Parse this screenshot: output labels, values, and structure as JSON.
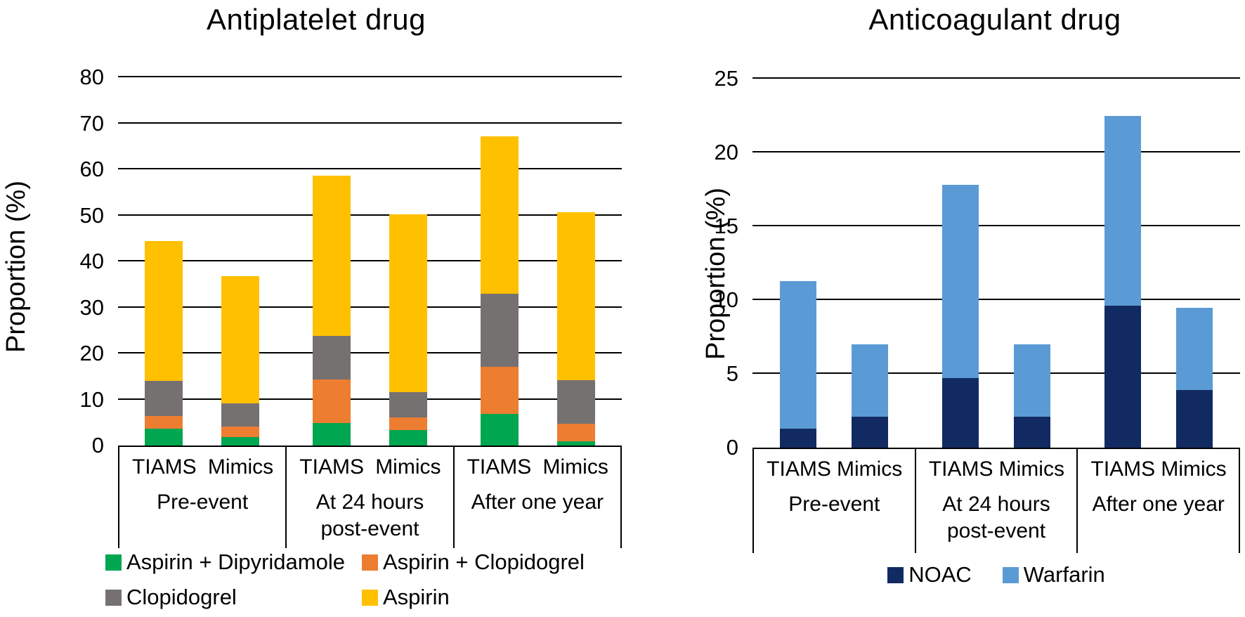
{
  "page": {
    "background": "#FFFFFF"
  },
  "chart_data": [
    {
      "type": "stacked-bar",
      "title": "Antiplatelet drug",
      "ylabel": "Proportion (%)",
      "ylim": [
        0,
        80
      ],
      "yticks": [
        0,
        10,
        20,
        30,
        40,
        50,
        60,
        70,
        80
      ],
      "grid": true,
      "gridline_color": "#000000",
      "legend_position": "bottom",
      "legend_columns": 2,
      "groups": [
        {
          "label": "Pre-event",
          "bars": [
            "TIAMS",
            "Mimics"
          ]
        },
        {
          "label": "At 24 hours\npost-event",
          "bars": [
            "TIAMS",
            "Mimics"
          ]
        },
        {
          "label": "After one year",
          "bars": [
            "TIAMS",
            "Mimics"
          ]
        }
      ],
      "categories": [
        "TIAMS",
        "Mimics",
        "TIAMS",
        "Mimics",
        "TIAMS",
        "Mimics"
      ],
      "series": [
        {
          "name": "Aspirin + Dipyridamole",
          "color": "#00A650",
          "values": [
            3.7,
            1.8,
            4.9,
            3.4,
            6.9,
            0.9
          ]
        },
        {
          "name": "Aspirin + Clopidogrel",
          "color": "#ED7D31",
          "values": [
            2.7,
            2.3,
            9.5,
            2.7,
            10.2,
            3.8
          ]
        },
        {
          "name": "Clopidogrel",
          "color": "#767171",
          "values": [
            7.7,
            5.1,
            9.4,
            5.5,
            15.9,
            9.5
          ]
        },
        {
          "name": "Aspirin",
          "color": "#FFC000",
          "values": [
            30.3,
            27.6,
            34.8,
            38.6,
            34.2,
            36.5
          ]
        }
      ],
      "bar_totals": [
        44.4,
        36.8,
        58.6,
        50.2,
        67.2,
        50.7
      ]
    },
    {
      "type": "stacked-bar",
      "title": "Anticoagulant drug",
      "ylabel": "Proportion (%)",
      "ylim": [
        0,
        25
      ],
      "yticks": [
        0,
        5,
        10,
        15,
        20,
        25
      ],
      "grid": true,
      "gridline_color": "#000000",
      "legend_position": "bottom",
      "legend_columns": 0,
      "groups": [
        {
          "label": "Pre-event",
          "bars": [
            "TIAMS",
            "Mimics"
          ]
        },
        {
          "label": "At 24 hours\npost-event",
          "bars": [
            "TIAMS",
            "Mimics"
          ]
        },
        {
          "label": "After one year",
          "bars": [
            "TIAMS",
            "Mimics"
          ]
        }
      ],
      "categories": [
        "TIAMS",
        "Mimics",
        "TIAMS",
        "Mimics",
        "TIAMS",
        "Mimics"
      ],
      "series": [
        {
          "name": "NOAC",
          "color": "#122A62",
          "values": [
            1.3,
            2.1,
            4.7,
            2.1,
            9.6,
            3.9
          ]
        },
        {
          "name": "Warfarin",
          "color": "#5B9BD5",
          "values": [
            10.0,
            4.9,
            13.1,
            4.9,
            12.9,
            5.6
          ]
        }
      ],
      "bar_totals": [
        11.3,
        7.0,
        17.8,
        7.0,
        22.5,
        9.5
      ]
    }
  ]
}
